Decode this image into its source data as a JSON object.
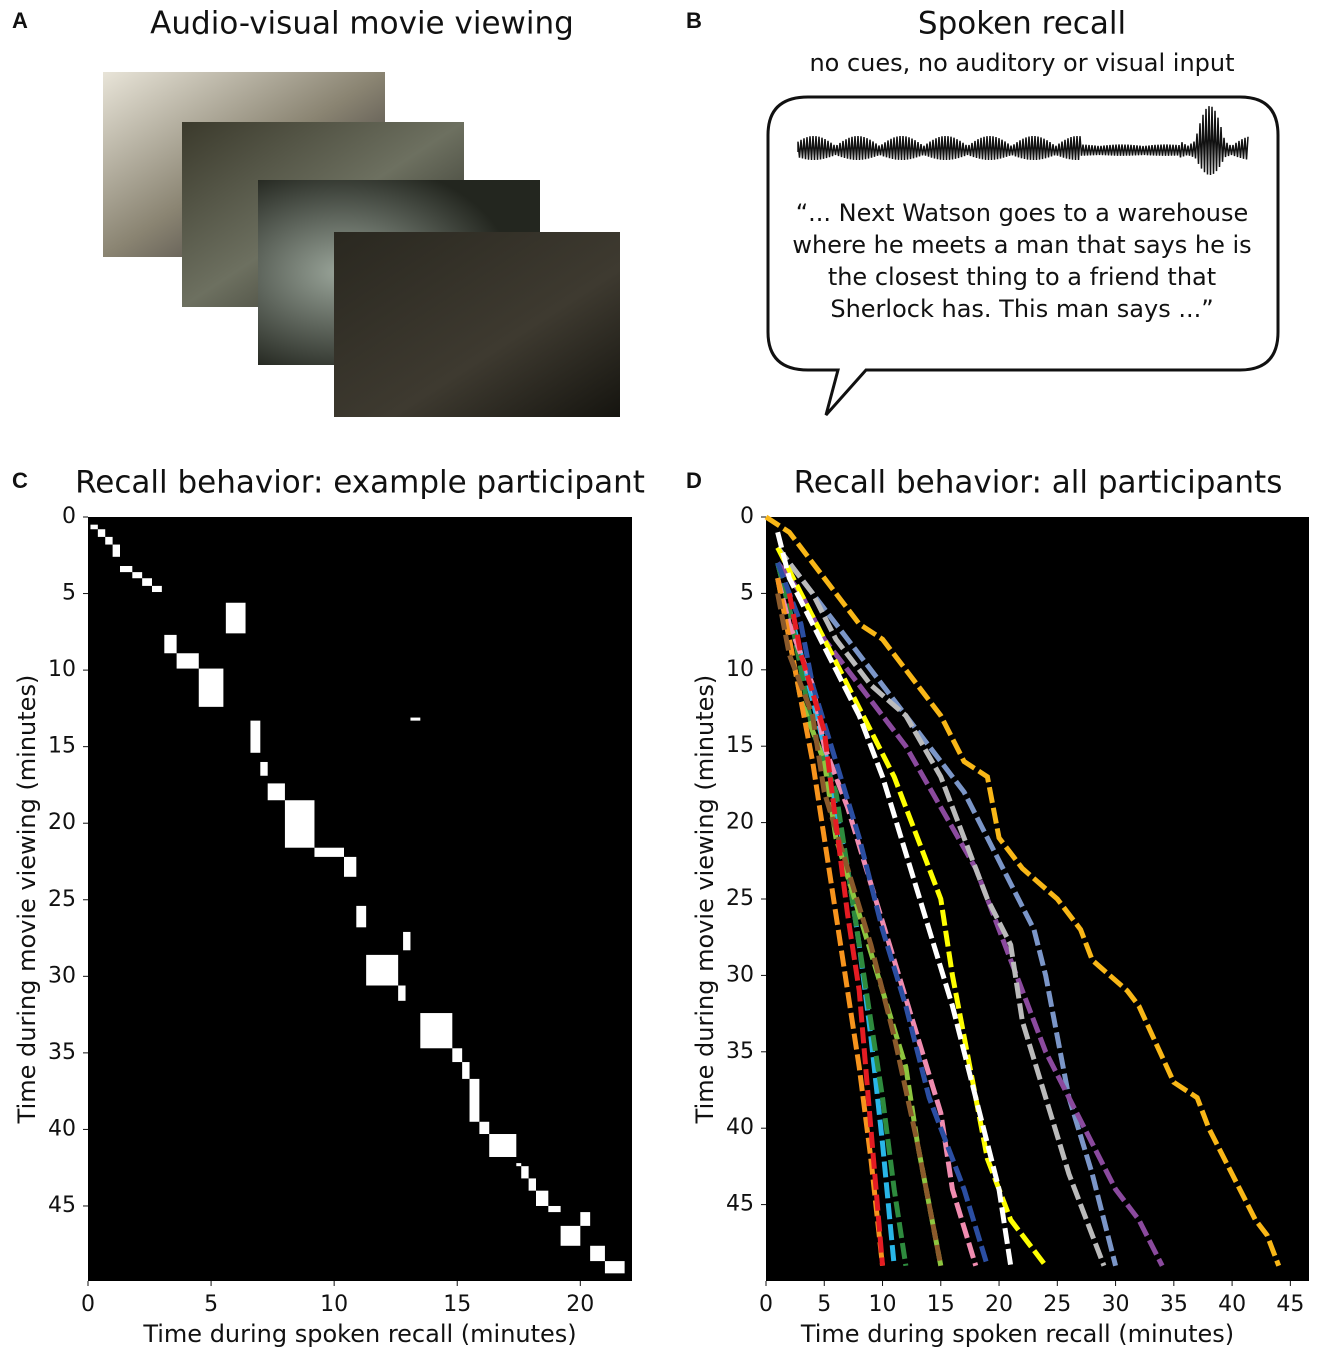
{
  "panel_labels": [
    "A",
    "B",
    "C",
    "D"
  ],
  "panel_a": {
    "title": "Audio-visual movie viewing"
  },
  "panel_b": {
    "title": "Spoken recall",
    "subtitle": "no cues, no auditory or visual input",
    "quote": [
      "“... Next Watson goes to a warehouse",
      "where he meets a man that says he is",
      "the closest thing to a friend that",
      "Sherlock has. This man says ...”"
    ]
  },
  "chart_data": [
    {
      "type": "blocks",
      "title": "Recall behavior: example participant",
      "x_label": "Time during spoken recall (minutes)",
      "y_label": "Time during movie viewing (minutes)",
      "color": "#ffffff",
      "background": "#000000",
      "xlim": [
        0,
        22.1
      ],
      "ylim": [
        0,
        49.9
      ],
      "y_inverted": true,
      "xticks": [
        0,
        5,
        10,
        15,
        20
      ],
      "yticks": [
        0,
        5,
        10,
        15,
        20,
        25,
        30,
        35,
        40,
        45
      ],
      "blocks": [
        [
          0.1,
          0.4,
          0.5,
          0.8
        ],
        [
          0.4,
          0.7,
          0.8,
          1.3
        ],
        [
          0.7,
          1.0,
          1.3,
          1.8
        ],
        [
          1.0,
          1.3,
          1.8,
          2.6
        ],
        [
          1.3,
          1.8,
          3.2,
          3.6
        ],
        [
          1.8,
          2.2,
          3.6,
          4.0
        ],
        [
          2.2,
          2.6,
          4.0,
          4.5
        ],
        [
          2.6,
          3.0,
          4.5,
          4.9
        ],
        [
          5.6,
          6.4,
          5.6,
          7.6
        ],
        [
          3.1,
          3.6,
          7.7,
          8.9
        ],
        [
          3.6,
          4.5,
          8.9,
          9.9
        ],
        [
          4.5,
          5.5,
          9.9,
          12.4
        ],
        [
          13.1,
          13.5,
          13.1,
          13.3
        ],
        [
          6.6,
          7.0,
          13.3,
          15.4
        ],
        [
          7.0,
          7.3,
          16.0,
          16.9
        ],
        [
          7.3,
          8.0,
          17.4,
          18.5
        ],
        [
          8.0,
          9.2,
          18.5,
          21.6
        ],
        [
          9.2,
          10.4,
          21.6,
          22.2
        ],
        [
          10.4,
          10.9,
          22.2,
          23.5
        ],
        [
          10.9,
          11.3,
          25.4,
          26.8
        ],
        [
          12.8,
          13.1,
          27.1,
          28.3
        ],
        [
          11.3,
          12.6,
          28.6,
          30.6
        ],
        [
          12.6,
          12.9,
          30.6,
          31.6
        ],
        [
          13.5,
          14.8,
          32.4,
          34.7
        ],
        [
          14.8,
          15.2,
          34.7,
          35.6
        ],
        [
          15.2,
          15.5,
          35.6,
          36.7
        ],
        [
          15.5,
          15.9,
          36.7,
          39.5
        ],
        [
          15.9,
          16.3,
          39.5,
          40.3
        ],
        [
          16.3,
          17.4,
          40.3,
          41.8
        ],
        [
          17.4,
          17.6,
          42.2,
          42.4
        ],
        [
          17.6,
          17.9,
          42.4,
          43.2
        ],
        [
          17.9,
          18.2,
          43.2,
          44.0
        ],
        [
          18.2,
          18.7,
          44.0,
          45.0
        ],
        [
          18.7,
          19.2,
          45.0,
          45.4
        ],
        [
          20.0,
          20.4,
          45.4,
          46.3
        ],
        [
          19.2,
          20.0,
          46.3,
          47.6
        ],
        [
          20.4,
          21.0,
          47.6,
          48.6
        ],
        [
          21.0,
          21.8,
          48.6,
          49.4
        ]
      ]
    },
    {
      "type": "line",
      "title": "Recall behavior: all participants",
      "x_label": "Time during spoken recall (minutes)",
      "y_label": "Time during movie viewing (minutes)",
      "background": "#000000",
      "xlim": [
        0,
        46.6
      ],
      "ylim": [
        0,
        50
      ],
      "y_inverted": true,
      "xticks": [
        0,
        5,
        10,
        15,
        20,
        25,
        30,
        35,
        40,
        45
      ],
      "yticks": [
        0,
        5,
        10,
        15,
        20,
        25,
        30,
        35,
        40,
        45
      ],
      "series": [
        {
          "color": "#f9b717",
          "x": [
            0,
            2,
            4,
            6,
            8,
            10,
            12,
            15,
            17,
            19,
            20,
            22,
            25,
            27,
            28,
            31,
            32,
            35,
            37,
            38,
            40,
            42,
            43,
            44
          ],
          "values": [
            0,
            1,
            3,
            5,
            7,
            8,
            10,
            13,
            16,
            17,
            21,
            23,
            25,
            27,
            29,
            31,
            32,
            37,
            38,
            40,
            43,
            46,
            47,
            49
          ]
        },
        {
          "color": "#7b96c8",
          "x": [
            1,
            3,
            5,
            7,
            9,
            11,
            13,
            15,
            17,
            19,
            21,
            23,
            24,
            25,
            26,
            28,
            30
          ],
          "values": [
            2,
            4,
            6,
            8,
            10,
            12,
            14,
            16,
            18,
            21,
            24,
            27,
            30,
            34,
            38,
            43,
            49
          ]
        },
        {
          "color": "#8b4a9e",
          "x": [
            1,
            3,
            5,
            7,
            9,
            12,
            15,
            18,
            20,
            22,
            24,
            26,
            28,
            30,
            32,
            34
          ],
          "values": [
            3,
            5,
            8,
            10,
            12,
            15,
            19,
            23,
            27,
            31,
            35,
            38,
            41,
            44,
            46,
            49
          ]
        },
        {
          "color": "#bbbbbb",
          "x": [
            1,
            4,
            6,
            9,
            12,
            15,
            17,
            19,
            21,
            22,
            24,
            26,
            29
          ],
          "values": [
            2,
            5,
            8,
            11,
            13,
            17,
            21,
            25,
            28,
            33,
            38,
            43,
            49
          ]
        },
        {
          "color": "#ffff00",
          "x": [
            1,
            3,
            5,
            7,
            9,
            11,
            13,
            15,
            16,
            17,
            18,
            19,
            21,
            24
          ],
          "values": [
            2,
            5,
            8,
            11,
            14,
            17,
            21,
            25,
            30,
            34,
            38,
            42,
            46,
            49
          ]
        },
        {
          "color": "#ffffff",
          "x": [
            1,
            2,
            4,
            6,
            8,
            10,
            12,
            14,
            16,
            18,
            20,
            21
          ],
          "values": [
            1,
            4,
            7,
            10,
            13,
            17,
            22,
            27,
            32,
            38,
            44,
            49
          ]
        },
        {
          "color": "#29b6e8",
          "x": [
            1,
            2,
            3,
            4,
            5,
            6,
            7,
            8,
            9,
            10,
            11
          ],
          "values": [
            3,
            6,
            9,
            12,
            15,
            19,
            23,
            28,
            34,
            41,
            49
          ]
        },
        {
          "color": "#2e8b3e",
          "x": [
            1,
            2,
            3,
            4,
            6,
            7,
            8,
            9,
            10,
            11,
            12
          ],
          "values": [
            3,
            6,
            10,
            14,
            18,
            23,
            28,
            33,
            38,
            44,
            49
          ]
        },
        {
          "color": "#8dc63f",
          "x": [
            1,
            2,
            3,
            5,
            6,
            8,
            10,
            12,
            13,
            14,
            15
          ],
          "values": [
            4,
            8,
            12,
            16,
            21,
            26,
            31,
            36,
            41,
            45,
            49
          ]
        },
        {
          "color": "#f08cb0",
          "x": [
            1,
            2,
            4,
            5,
            7,
            9,
            11,
            13,
            15,
            16,
            18
          ],
          "values": [
            4,
            7,
            11,
            15,
            19,
            24,
            29,
            34,
            39,
            44,
            49
          ]
        },
        {
          "color": "#f7941d",
          "x": [
            1,
            2,
            3,
            4,
            5,
            6,
            7,
            8,
            9,
            10
          ],
          "values": [
            4,
            8,
            12,
            16,
            21,
            26,
            31,
            36,
            42,
            49
          ]
        },
        {
          "color": "#8b5a2b",
          "x": [
            1,
            2,
            4,
            5,
            7,
            9,
            11,
            13,
            15
          ],
          "values": [
            5,
            9,
            13,
            18,
            23,
            28,
            34,
            41,
            49
          ]
        },
        {
          "color": "#2b4ea2",
          "x": [
            1,
            3,
            4,
            6,
            8,
            10,
            12,
            14,
            17,
            19
          ],
          "values": [
            3,
            7,
            11,
            16,
            21,
            27,
            32,
            38,
            44,
            49
          ]
        },
        {
          "color": "#e51c23",
          "x": [
            2,
            3,
            5,
            6,
            7,
            8,
            9,
            10
          ],
          "values": [
            5,
            9,
            14,
            20,
            26,
            31,
            40,
            49
          ]
        }
      ]
    }
  ]
}
